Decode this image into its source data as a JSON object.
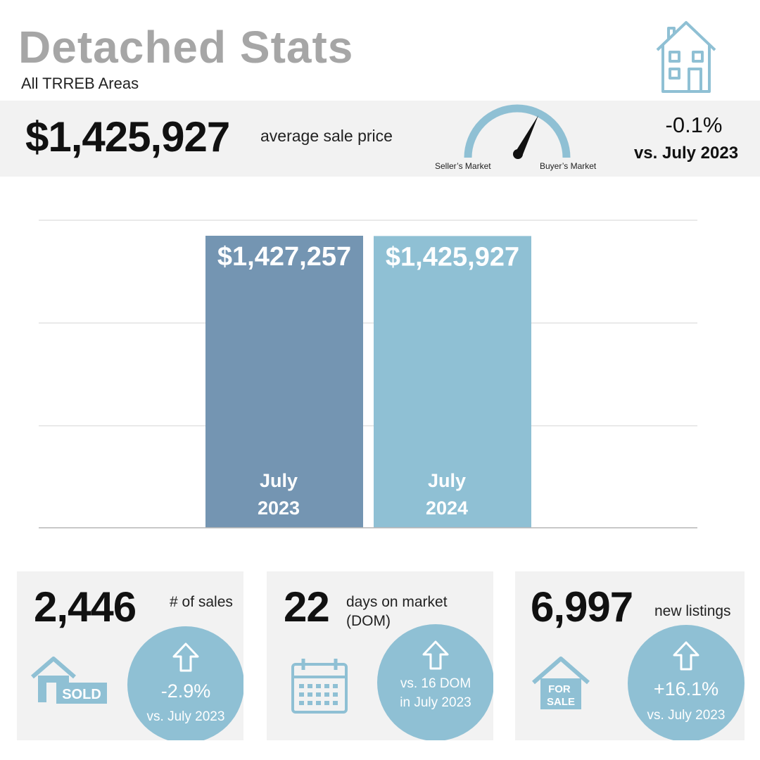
{
  "header": {
    "title": "Detached Stats",
    "subtitle": "All TRREB Areas"
  },
  "summary": {
    "average_price": "$1,425,927",
    "average_label": "average sale price",
    "gauge_left_label": "Seller’s Market",
    "gauge_right_label": "Buyer’s Market",
    "change": "-0.1%",
    "change_vs": "vs. July 2023"
  },
  "chart_data": {
    "type": "bar",
    "categories": [
      [
        "July",
        "2023"
      ],
      [
        "July",
        "2024"
      ]
    ],
    "values": [
      1427257,
      1425927
    ],
    "value_labels": [
      "$1,427,257",
      "$1,425,927"
    ],
    "colors": [
      "#7495b2",
      "#8fc0d4"
    ],
    "grid": true
  },
  "cards": [
    {
      "number": "2,446",
      "label": "# of sales",
      "circle_main": "-2.9%",
      "circle_sub": "vs. July 2023",
      "icon": "sold-house-icon",
      "icon_text": "SOLD"
    },
    {
      "number": "22",
      "label": "days on market\n(DOM)",
      "circle_main": "",
      "circle_sub": "vs. 16 DOM\nin July 2023",
      "icon": "calendar-icon"
    },
    {
      "number": "6,997",
      "label": "new listings",
      "circle_main": "+16.1%",
      "circle_sub": "vs. July 2023",
      "icon": "for-sale-house-icon",
      "icon_text": "FOR\nSALE"
    }
  ],
  "colors": {
    "accent": "#8fc0d4",
    "bar_2023": "#7495b2",
    "banner_bg": "#f2f2f2",
    "title_grey": "#a6a6a6"
  }
}
